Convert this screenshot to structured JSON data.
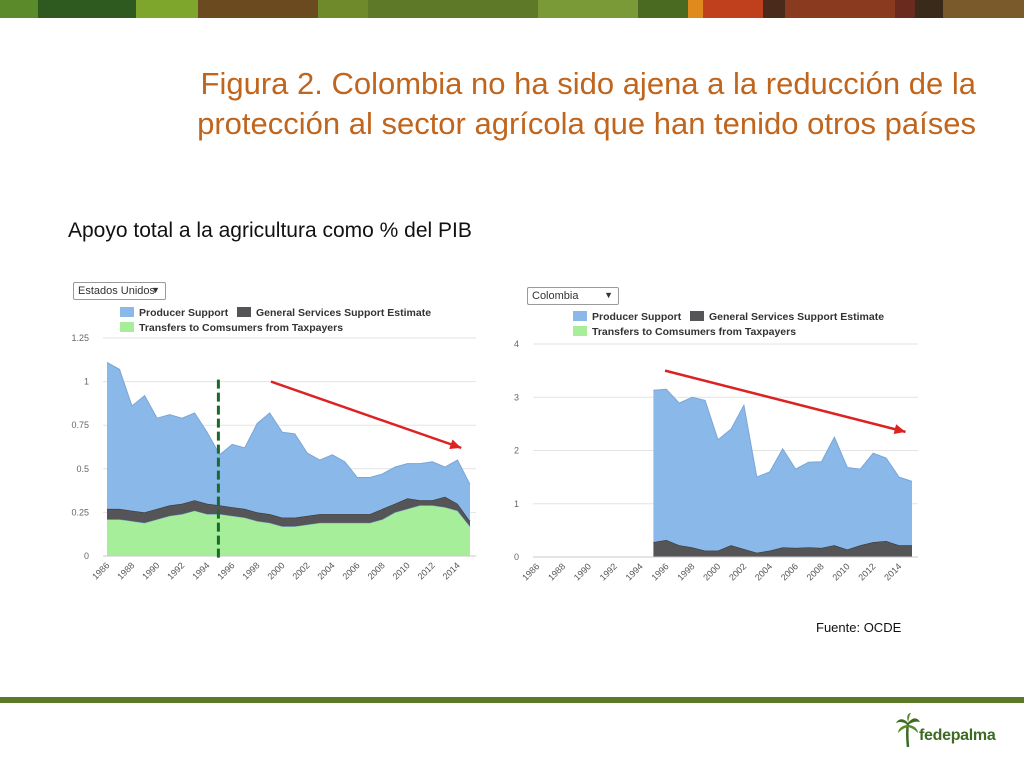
{
  "slide": {
    "title_line1": "Figura 2. Colombia no ha sido ajena a la reducción de la",
    "title_line2": "protección al sector agrícola que han tenido otros países",
    "subtitle": "Apoyo total a la agricultura como % del PIB",
    "source": "Fuente: OCDE",
    "logo_text": "fedepalma"
  },
  "colors": {
    "title": "#c0651e",
    "producer_support": "#8ab8e8",
    "general_services": "#555557",
    "transfers": "#a6ee9a",
    "trend_arrow": "#dd2222",
    "vertical_marker": "#1a6b2a",
    "stripes": [
      "#5a8a2a",
      "#2f5a1f",
      "#7ea62c",
      "#6a4a1e",
      "#6e8a2a",
      "#5e7a28",
      "#7a9a38",
      "#4a6a22",
      "#e08a1e",
      "#c0401e",
      "#4a2a1a",
      "#8a3a1e",
      "#6a2a1e",
      "#3a2a1a",
      "#7a5a2a"
    ]
  },
  "chart_data": [
    {
      "type": "area",
      "country": "Estados Unidos",
      "legend": [
        "Producer Support",
        "General Services Support Estimate",
        "Transfers to Comsumers from Taxpayers"
      ],
      "years": [
        1986,
        1987,
        1988,
        1989,
        1990,
        1991,
        1992,
        1993,
        1994,
        1995,
        1996,
        1997,
        1998,
        1999,
        2000,
        2001,
        2002,
        2003,
        2004,
        2005,
        2006,
        2007,
        2008,
        2009,
        2010,
        2011,
        2012,
        2013,
        2014,
        2015
      ],
      "x_tick_labels": [
        "1986",
        "1988",
        "1990",
        "1992",
        "1994",
        "1996",
        "1998",
        "2000",
        "2002",
        "2004",
        "2006",
        "2008",
        "2010",
        "2012",
        "2014"
      ],
      "series": [
        {
          "name": "Transfers to Comsumers from Taxpayers",
          "values": [
            0.21,
            0.21,
            0.2,
            0.19,
            0.21,
            0.23,
            0.24,
            0.26,
            0.24,
            0.24,
            0.23,
            0.22,
            0.2,
            0.19,
            0.17,
            0.17,
            0.18,
            0.19,
            0.19,
            0.19,
            0.19,
            0.19,
            0.21,
            0.25,
            0.27,
            0.29,
            0.29,
            0.28,
            0.26,
            0.17
          ]
        },
        {
          "name": "General Services Support Estimate",
          "values": [
            0.06,
            0.06,
            0.06,
            0.06,
            0.06,
            0.06,
            0.06,
            0.06,
            0.06,
            0.05,
            0.05,
            0.05,
            0.05,
            0.05,
            0.05,
            0.05,
            0.05,
            0.05,
            0.05,
            0.05,
            0.05,
            0.05,
            0.06,
            0.05,
            0.06,
            0.03,
            0.03,
            0.06,
            0.04,
            0.03
          ]
        },
        {
          "name": "Producer Support",
          "values": [
            0.84,
            0.8,
            0.6,
            0.67,
            0.52,
            0.52,
            0.49,
            0.5,
            0.41,
            0.29,
            0.36,
            0.35,
            0.51,
            0.58,
            0.49,
            0.48,
            0.36,
            0.31,
            0.34,
            0.3,
            0.21,
            0.21,
            0.2,
            0.21,
            0.2,
            0.21,
            0.22,
            0.17,
            0.25,
            0.21
          ]
        }
      ],
      "ylim": [
        0,
        1.25
      ],
      "y_ticks": [
        0,
        0.25,
        0.5,
        0.75,
        1,
        1.25
      ],
      "y_tick_labels": [
        "0",
        "0.25",
        "0.5",
        "0.75",
        "1",
        "1.25"
      ],
      "marker_year": 1994.9,
      "trend_arrow": {
        "from": [
          1999.1,
          1.0
        ],
        "to": [
          2014.3,
          0.62
        ]
      }
    },
    {
      "type": "area",
      "country": "Colombia",
      "legend": [
        "Producer Support",
        "General Services Support Estimate",
        "Transfers to Comsumers from Taxpayers"
      ],
      "years": [
        1986,
        1987,
        1988,
        1989,
        1990,
        1991,
        1992,
        1993,
        1994,
        1995,
        1996,
        1997,
        1998,
        1999,
        2000,
        2001,
        2002,
        2003,
        2004,
        2005,
        2006,
        2007,
        2008,
        2009,
        2010,
        2011,
        2012,
        2013,
        2014,
        2015
      ],
      "x_tick_labels": [
        "1986",
        "1988",
        "1990",
        "1992",
        "1994",
        "1996",
        "1998",
        "2000",
        "2002",
        "2004",
        "2006",
        "2008",
        "2010",
        "2012",
        "2014"
      ],
      "data_start_year": 1995,
      "series": [
        {
          "name": "Transfers to Comsumers from Taxpayers",
          "values": [
            0,
            0,
            0,
            0,
            0,
            0,
            0,
            0,
            0,
            0,
            0,
            0,
            0,
            0,
            0,
            0,
            0,
            0,
            0,
            0,
            0,
            0,
            0,
            0,
            0,
            0,
            0,
            0,
            0,
            0
          ]
        },
        {
          "name": "General Services Support Estimate",
          "values": [
            0,
            0,
            0,
            0,
            0,
            0,
            0,
            0,
            0,
            0.28,
            0.32,
            0.22,
            0.18,
            0.12,
            0.12,
            0.22,
            0.15,
            0.08,
            0.12,
            0.18,
            0.17,
            0.18,
            0.17,
            0.22,
            0.14,
            0.22,
            0.28,
            0.3,
            0.22,
            0.22
          ]
        },
        {
          "name": "Producer Support",
          "values": [
            0,
            0,
            0,
            0,
            0,
            0,
            0,
            0,
            0,
            2.85,
            2.83,
            2.67,
            2.82,
            2.82,
            2.08,
            2.18,
            2.7,
            1.42,
            1.48,
            1.85,
            1.48,
            1.6,
            1.62,
            2.03,
            1.54,
            1.43,
            1.67,
            1.56,
            1.28,
            1.2
          ]
        }
      ],
      "ylim": [
        0,
        4
      ],
      "y_ticks": [
        0,
        1,
        2,
        3,
        4
      ],
      "y_tick_labels": [
        "0",
        "1",
        "2",
        "3",
        "4"
      ],
      "trend_arrow": {
        "from": [
          1995.9,
          3.5
        ],
        "to": [
          2014.5,
          2.35
        ]
      }
    }
  ]
}
